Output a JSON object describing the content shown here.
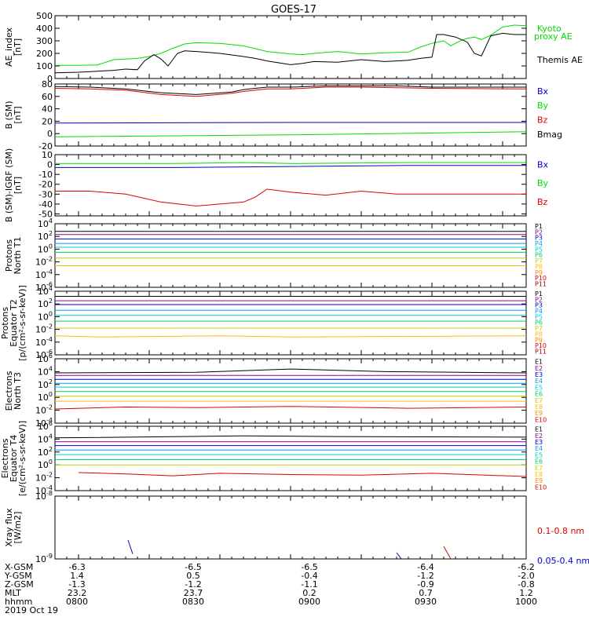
{
  "title": "GOES-17",
  "colors": {
    "black": "#000000",
    "green": "#00dd00",
    "blue": "#0000cc",
    "red": "#dd0000",
    "P1": "#000000",
    "P2": "#8b008b",
    "P3": "#0000cc",
    "P4": "#0099ff",
    "P5": "#00cccc",
    "P6": "#00cc66",
    "P7": "#cccc00",
    "P8": "#ffbb00",
    "P9": "#ff8800",
    "P10": "#dd0000",
    "P11": "#aa0000"
  },
  "chart_data": [
    {
      "type": "line",
      "ylabel": [
        "AE_index",
        "[nT]"
      ],
      "ylim": [
        0,
        500
      ],
      "yticks": [
        "0",
        "100",
        "200",
        "300",
        "400",
        "500"
      ],
      "series": [
        {
          "name": "Kyoto proxy AE",
          "color": "green",
          "x": [
            800,
            810,
            818,
            825,
            835,
            840,
            845,
            850,
            855,
            860,
            870,
            880,
            890,
            900,
            905,
            910,
            920,
            930,
            940,
            950,
            955,
            960,
            965,
            968,
            972,
            975,
            978,
            981,
            985,
            990,
            995,
            1000
          ],
          "values": [
            105,
            105,
            108,
            150,
            160,
            175,
            200,
            240,
            275,
            285,
            280,
            260,
            215,
            195,
            190,
            200,
            215,
            195,
            205,
            210,
            250,
            280,
            300,
            260,
            300,
            320,
            330,
            310,
            345,
            410,
            425,
            420
          ]
        },
        {
          "name": "Themis AE",
          "color": "black",
          "x": [
            800,
            810,
            815,
            825,
            830,
            835,
            838,
            842,
            845,
            848,
            852,
            855,
            860,
            870,
            880,
            885,
            890,
            895,
            900,
            905,
            910,
            920,
            930,
            940,
            945,
            950,
            955,
            960,
            962,
            965,
            970,
            975,
            978,
            981,
            985,
            990,
            995,
            1000
          ],
          "values": [
            45,
            50,
            55,
            65,
            75,
            70,
            140,
            190,
            155,
            100,
            200,
            220,
            215,
            200,
            175,
            160,
            140,
            125,
            110,
            120,
            135,
            130,
            150,
            135,
            140,
            145,
            160,
            170,
            350,
            350,
            330,
            290,
            200,
            180,
            340,
            360,
            350,
            350
          ]
        }
      ],
      "labels": [
        {
          "text": "Kyoto",
          "color": "green"
        },
        {
          "text": "proxy AE",
          "color": "green"
        },
        {
          "text": "Themis AE",
          "color": "black"
        }
      ]
    },
    {
      "type": "line",
      "ylabel": [
        "B (SM)",
        "[nT]"
      ],
      "ylim": [
        -20,
        80
      ],
      "yticks": [
        "-20",
        "0",
        "20",
        "40",
        "60",
        "80"
      ],
      "series": [
        {
          "name": "Bx",
          "color": "blue",
          "x": [
            800,
            900,
            1000
          ],
          "values": [
            17,
            18,
            18
          ]
        },
        {
          "name": "By",
          "color": "green",
          "x": [
            800,
            900,
            1000
          ],
          "values": [
            -5,
            -2,
            3
          ]
        },
        {
          "name": "Bz",
          "color": "red",
          "x": [
            800,
            815,
            830,
            845,
            860,
            875,
            880,
            885,
            890,
            900,
            915,
            930,
            945,
            960,
            1000
          ],
          "values": [
            73,
            72,
            70,
            63,
            60,
            65,
            68,
            70,
            72,
            72,
            75,
            75,
            74,
            73,
            72
          ]
        },
        {
          "name": "Bmag",
          "color": "black",
          "x": [
            800,
            815,
            830,
            845,
            860,
            875,
            880,
            885,
            890,
            900,
            915,
            930,
            945,
            960,
            1000
          ],
          "values": [
            76,
            75,
            72,
            66,
            63,
            67,
            71,
            73,
            75,
            75,
            77,
            77,
            77,
            75,
            75
          ]
        }
      ],
      "labels": [
        {
          "text": "Bx",
          "color": "blue"
        },
        {
          "text": "By",
          "color": "green"
        },
        {
          "text": "Bz",
          "color": "red"
        },
        {
          "text": "Bmag",
          "color": "black"
        }
      ]
    },
    {
      "type": "line",
      "ylabel": [
        "B (SM)-IGRF (SM)",
        "[nT]"
      ],
      "ylim": [
        -52,
        10
      ],
      "yticks": [
        "-50",
        "-40",
        "-30",
        "-20",
        "-10",
        "0",
        "10"
      ],
      "series": [
        {
          "name": "Bx",
          "color": "blue",
          "x": [
            800,
            850,
            900,
            950,
            1000
          ],
          "values": [
            -3,
            -3,
            -2,
            -1,
            -1
          ]
        },
        {
          "name": "By",
          "color": "green",
          "x": [
            800,
            850,
            880,
            900,
            950,
            1000
          ],
          "values": [
            1,
            1,
            2,
            1,
            2,
            2
          ]
        },
        {
          "name": "Bz",
          "color": "red",
          "x": [
            800,
            815,
            830,
            845,
            860,
            870,
            880,
            885,
            890,
            900,
            915,
            930,
            945,
            960,
            1000
          ],
          "values": [
            -27,
            -27,
            -30,
            -38,
            -42,
            -40,
            -38,
            -33,
            -25,
            -28,
            -31,
            -27,
            -30,
            -30,
            -30
          ]
        }
      ],
      "labels": [
        {
          "text": "Bx",
          "color": "blue"
        },
        {
          "text": "By",
          "color": "green"
        },
        {
          "text": "Bz",
          "color": "red"
        }
      ]
    },
    {
      "type": "line",
      "log": true,
      "ylabel": [
        "Protons",
        "North T1"
      ],
      "ylim": [
        -6,
        4
      ],
      "yticks": [
        "10^-6",
        "10^-4",
        "10^-2",
        "10^0",
        "10^2",
        "10^4"
      ],
      "series": [
        {
          "name": "P1",
          "color": "P1",
          "x": [
            800,
            1000
          ],
          "values": [
            2.8,
            2.8
          ]
        },
        {
          "name": "P2",
          "color": "P2",
          "x": [
            800,
            1000
          ],
          "values": [
            2.3,
            2.3
          ]
        },
        {
          "name": "P3",
          "color": "P3",
          "x": [
            800,
            1000
          ],
          "values": [
            1.6,
            1.6
          ]
        },
        {
          "name": "P4",
          "color": "P4",
          "x": [
            800,
            1000
          ],
          "values": [
            0.9,
            0.9
          ]
        },
        {
          "name": "P5",
          "color": "P5",
          "x": [
            800,
            1000
          ],
          "values": [
            0.3,
            0.3
          ]
        },
        {
          "name": "P6",
          "color": "P6",
          "x": [
            800,
            1000
          ],
          "values": [
            -0.5,
            -0.5
          ]
        },
        {
          "name": "P7",
          "color": "P7",
          "x": [
            800,
            1000
          ],
          "values": [
            -1.4,
            -1.4
          ]
        },
        {
          "name": "P8",
          "color": "P8",
          "x": [
            800,
            1000
          ],
          "values": [
            -2.6,
            -2.6
          ]
        }
      ],
      "labels": [
        "P1",
        "P2",
        "P3",
        "P4",
        "P5",
        "P6",
        "P7",
        "P8",
        "P9",
        "P10",
        "P11"
      ]
    },
    {
      "type": "line",
      "log": true,
      "ylabel": [
        "Protons",
        "Equator T2",
        "[p/(cm²-s-sr-keV)]"
      ],
      "ylim": [
        -6,
        4
      ],
      "yticks": [
        "10^-6",
        "10^-4",
        "10^-2",
        "10^0",
        "10^2",
        "10^4"
      ],
      "series": [
        {
          "name": "P1",
          "color": "P1",
          "x": [
            800,
            1000
          ],
          "values": [
            3.2,
            3.2
          ]
        },
        {
          "name": "P2",
          "color": "P2",
          "x": [
            800,
            1000
          ],
          "values": [
            2.5,
            2.5
          ]
        },
        {
          "name": "P3",
          "color": "P3",
          "x": [
            800,
            1000
          ],
          "values": [
            1.9,
            1.9
          ]
        },
        {
          "name": "P4",
          "color": "P4",
          "x": [
            800,
            1000
          ],
          "values": [
            1.0,
            1.0
          ]
        },
        {
          "name": "P5",
          "color": "P5",
          "x": [
            800,
            1000
          ],
          "values": [
            0.2,
            0.2
          ]
        },
        {
          "name": "P6",
          "color": "P6",
          "x": [
            800,
            1000
          ],
          "values": [
            -0.7,
            -0.7
          ]
        },
        {
          "name": "P7",
          "color": "P7",
          "x": [
            800,
            1000
          ],
          "values": [
            -1.8,
            -1.8
          ]
        },
        {
          "name": "P8",
          "color": "P8",
          "x": [
            800,
            820,
            870,
            900,
            1000
          ],
          "values": [
            -3.0,
            -3.2,
            -3.0,
            -3.2,
            -3.0
          ]
        }
      ],
      "labels": [
        "P1",
        "P2",
        "P3",
        "P4",
        "P5",
        "P6",
        "P7",
        "P8",
        "P9",
        "P10",
        "P11"
      ]
    },
    {
      "type": "line",
      "log": true,
      "ylabel": [
        "Electrons",
        "North T3"
      ],
      "ylim": [
        -4,
        6
      ],
      "yticks": [
        "10^-4",
        "10^-2",
        "10^0",
        "10^2",
        "10^4",
        "10^6"
      ],
      "series": [
        {
          "name": "E1",
          "color": "P1",
          "x": [
            800,
            860,
            900,
            940,
            1000
          ],
          "values": [
            3.8,
            3.9,
            4.4,
            4.0,
            3.8
          ]
        },
        {
          "name": "E2",
          "color": "P2",
          "x": [
            800,
            1000
          ],
          "values": [
            3.4,
            3.4
          ]
        },
        {
          "name": "E3",
          "color": "P3",
          "x": [
            800,
            1000
          ],
          "values": [
            2.8,
            2.8
          ]
        },
        {
          "name": "E4",
          "color": "P4",
          "x": [
            800,
            1000
          ],
          "values": [
            2.2,
            2.2
          ]
        },
        {
          "name": "E5",
          "color": "P5",
          "x": [
            800,
            1000
          ],
          "values": [
            1.6,
            1.6
          ]
        },
        {
          "name": "E6",
          "color": "P6",
          "x": [
            800,
            1000
          ],
          "values": [
            0.9,
            0.9
          ]
        },
        {
          "name": "E7",
          "color": "P7",
          "x": [
            800,
            1000
          ],
          "values": [
            0.2,
            0.2
          ]
        },
        {
          "name": "E8",
          "color": "P8",
          "x": [
            800,
            1000
          ],
          "values": [
            -0.6,
            -0.6
          ]
        },
        {
          "name": "E9",
          "color": "P10",
          "x": [
            800,
            830,
            860,
            900,
            950,
            1000
          ],
          "values": [
            -1.8,
            -1.5,
            -1.6,
            -1.4,
            -1.7,
            -1.5
          ]
        }
      ],
      "labels": [
        "E1",
        "E2",
        "E3",
        "E4",
        "E5",
        "E6",
        "E7",
        "E8",
        "E9",
        "E10"
      ]
    },
    {
      "type": "line",
      "log": true,
      "ylabel": [
        "Electrons",
        "Equator T4",
        "[e/(cm²-s-sr-keV)]"
      ],
      "ylim": [
        -4,
        6
      ],
      "yticks": [
        "10^-4",
        "10^-2",
        "10^0",
        "10^2",
        "10^4",
        "10^6"
      ],
      "series": [
        {
          "name": "E1",
          "color": "P1",
          "x": [
            800,
            880,
            920,
            1000
          ],
          "values": [
            4.2,
            4.5,
            4.4,
            4.3
          ]
        },
        {
          "name": "E2",
          "color": "P2",
          "x": [
            800,
            1000
          ],
          "values": [
            3.6,
            3.6
          ]
        },
        {
          "name": "E3",
          "color": "P3",
          "x": [
            800,
            1000
          ],
          "values": [
            3.0,
            3.0
          ]
        },
        {
          "name": "E4",
          "color": "P4",
          "x": [
            800,
            1000
          ],
          "values": [
            2.3,
            2.3
          ]
        },
        {
          "name": "E5",
          "color": "P5",
          "x": [
            800,
            1000
          ],
          "values": [
            1.6,
            1.6
          ]
        },
        {
          "name": "E6",
          "color": "P6",
          "x": [
            800,
            1000
          ],
          "values": [
            0.8,
            0.8
          ]
        },
        {
          "name": "E7",
          "color": "P7",
          "x": [
            800,
            1000
          ],
          "values": [
            0.0,
            0.0
          ]
        },
        {
          "name": "E8",
          "color": "P10",
          "x": [
            810,
            830,
            850,
            870,
            900,
            930,
            960,
            1000
          ],
          "values": [
            -1.2,
            -1.4,
            -1.7,
            -1.3,
            -1.5,
            -1.6,
            -1.3,
            -1.8
          ]
        }
      ],
      "labels": [
        "E1",
        "E2",
        "E3",
        "E4",
        "E5",
        "E6",
        "E7",
        "E8",
        "E9",
        "E10"
      ]
    },
    {
      "type": "line",
      "log": true,
      "ylabel": [
        "Xray flux",
        "[W/m2]"
      ],
      "ylim": [
        -9,
        -8
      ],
      "yticks": [
        "10^-9",
        "10^-8"
      ],
      "series": [
        {
          "name": "0.05-0.4 nm",
          "color": "blue",
          "segments": [
            [
              [
                831,
                -8.7
              ],
              [
                833,
                -8.92
              ]
            ],
            [
              [
                945,
                -8.9
              ],
              [
                947,
                -9.0
              ]
            ]
          ]
        },
        {
          "name": "0.1-0.8 nm",
          "color": "red",
          "segments": [
            [
              [
                965,
                -8.8
              ],
              [
                968,
                -9.0
              ]
            ]
          ]
        }
      ],
      "labels": [
        {
          "text": "0.1-0.8 nm",
          "color": "red"
        },
        {
          "text": "0.05-0.4 nm",
          "color": "blue"
        }
      ]
    }
  ],
  "footer": {
    "row_labels": [
      "X-GSM",
      "Y-GSM",
      "Z-GSM",
      "MLT",
      "hhmm",
      "2019 Oct 19"
    ],
    "columns": [
      [
        "-6.3",
        "1.4",
        "-1.3",
        "23.2",
        "0800"
      ],
      [
        "-6.5",
        "0.5",
        "-1.2",
        "23.7",
        "0830"
      ],
      [
        "-6.5",
        "-0.4",
        "-1.1",
        "0.2",
        "0900"
      ],
      [
        "-6.4",
        "-1.2",
        "-0.9",
        "0.7",
        "0930"
      ],
      [
        "-6.2",
        "-2.0",
        "-0.8",
        "1.2",
        "1000"
      ]
    ]
  }
}
